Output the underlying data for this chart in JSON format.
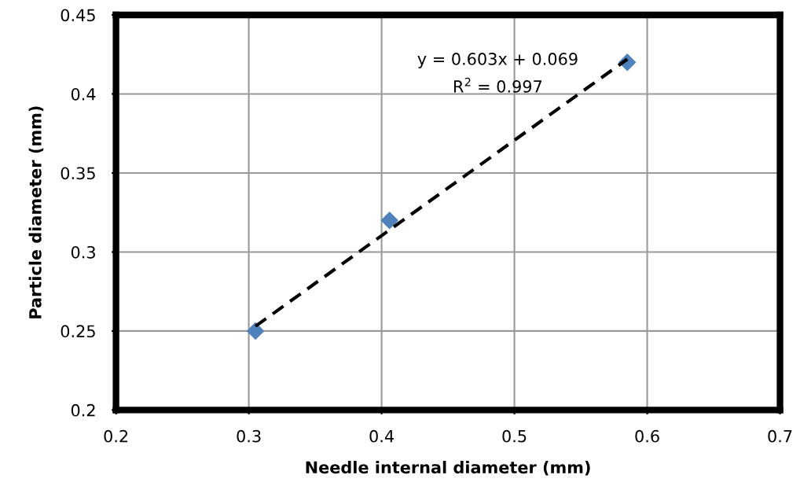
{
  "chart_data": {
    "type": "scatter",
    "xlabel": "Needle internal diameter (mm)",
    "ylabel": "Particle diameter (mm)",
    "xlim": [
      0.2,
      0.7
    ],
    "xticks": [
      0.2,
      0.3,
      0.4,
      0.5,
      0.6,
      0.7
    ],
    "ylim": [
      0.2,
      0.45
    ],
    "yticks": [
      0.2,
      0.25,
      0.3,
      0.35,
      0.4,
      0.45
    ],
    "grid": true,
    "marker": "diamond",
    "series": [
      {
        "color": "#4f81bd",
        "x": [
          0.305,
          0.406,
          0.585
        ],
        "values": [
          0.25,
          0.32,
          0.42
        ]
      },
      {
        "type": "line",
        "color": "#000000",
        "line_style": "dashed",
        "marker": "none",
        "x": [
          0.305,
          0.585
        ],
        "values": [
          0.253,
          0.422
        ]
      }
    ],
    "annotations": [
      "y = 0.603x + 0.069",
      "R$^{2}$ = 0.997"
    ]
  }
}
